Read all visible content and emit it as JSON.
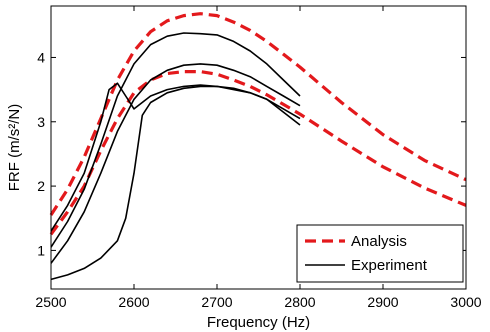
{
  "chart_data": {
    "type": "line",
    "title": "",
    "xlabel": "Frequency (Hz)",
    "ylabel": "FRF (m/s²/N)",
    "xlim": [
      2500,
      3000
    ],
    "ylim": [
      0.4,
      4.8
    ],
    "x_ticks": [
      2500,
      2600,
      2700,
      2800,
      2900,
      3000
    ],
    "y_ticks": [
      1,
      2,
      3,
      4
    ],
    "grid": false,
    "legend_placement": "bottom-right",
    "legend": [
      "Analysis",
      "Experiment"
    ],
    "colors": {
      "analysis": "#e3191c",
      "experiment": "#000000"
    },
    "series": [
      {
        "name": "Analysis",
        "style": "dashed",
        "color": "#e3191c",
        "x": [
          2500,
          2520,
          2540,
          2560,
          2580,
          2600,
          2620,
          2640,
          2660,
          2680,
          2700,
          2720,
          2740,
          2760,
          2780,
          2800,
          2850,
          2900,
          2950,
          3000
        ],
        "y": [
          1.55,
          1.95,
          2.45,
          3.05,
          3.65,
          4.1,
          4.4,
          4.57,
          4.65,
          4.68,
          4.65,
          4.55,
          4.42,
          4.25,
          4.05,
          3.85,
          3.3,
          2.8,
          2.4,
          2.1
        ]
      },
      {
        "name": "Analysis",
        "style": "dashed",
        "color": "#e3191c",
        "x": [
          2500,
          2520,
          2540,
          2560,
          2580,
          2600,
          2620,
          2640,
          2660,
          2680,
          2700,
          2720,
          2740,
          2760,
          2780,
          2800,
          2850,
          2900,
          2950,
          3000
        ],
        "y": [
          1.25,
          1.6,
          2.0,
          2.55,
          3.05,
          3.45,
          3.65,
          3.75,
          3.78,
          3.78,
          3.74,
          3.65,
          3.55,
          3.42,
          3.27,
          3.12,
          2.7,
          2.3,
          1.97,
          1.7
        ]
      },
      {
        "name": "Experiment",
        "style": "solid",
        "color": "#000000",
        "x": [
          2500,
          2520,
          2540,
          2560,
          2580,
          2600,
          2620,
          2640,
          2660,
          2680,
          2700,
          2720,
          2740,
          2760,
          2780,
          2800
        ],
        "y": [
          1.05,
          1.45,
          1.95,
          2.65,
          3.4,
          3.9,
          4.2,
          4.33,
          4.38,
          4.37,
          4.35,
          4.25,
          4.1,
          3.9,
          3.65,
          3.4
        ]
      },
      {
        "name": "Experiment",
        "style": "solid",
        "color": "#000000",
        "x": [
          2500,
          2520,
          2540,
          2560,
          2580,
          2600,
          2620,
          2640,
          2660,
          2680,
          2700,
          2720,
          2740,
          2760,
          2780,
          2800
        ],
        "y": [
          0.8,
          1.15,
          1.6,
          2.2,
          2.85,
          3.35,
          3.65,
          3.8,
          3.88,
          3.9,
          3.88,
          3.8,
          3.7,
          3.55,
          3.4,
          3.25
        ]
      },
      {
        "name": "Experiment",
        "style": "solid",
        "color": "#000000",
        "x": [
          2500,
          2520,
          2540,
          2560,
          2570,
          2580,
          2590,
          2600,
          2620,
          2640,
          2660,
          2680,
          2700,
          2720,
          2740,
          2760,
          2780,
          2800
        ],
        "y": [
          1.3,
          1.7,
          2.2,
          3.0,
          3.5,
          3.6,
          3.4,
          3.2,
          3.4,
          3.5,
          3.55,
          3.57,
          3.55,
          3.5,
          3.45,
          3.35,
          3.2,
          3.05
        ]
      },
      {
        "name": "Experiment",
        "style": "solid",
        "color": "#000000",
        "x": [
          2500,
          2520,
          2540,
          2560,
          2580,
          2590,
          2600,
          2610,
          2620,
          2640,
          2660,
          2680,
          2700,
          2720,
          2740,
          2760,
          2780,
          2800
        ],
        "y": [
          0.55,
          0.62,
          0.72,
          0.88,
          1.15,
          1.5,
          2.2,
          3.1,
          3.3,
          3.45,
          3.52,
          3.55,
          3.55,
          3.52,
          3.45,
          3.35,
          3.15,
          2.95
        ]
      }
    ]
  }
}
